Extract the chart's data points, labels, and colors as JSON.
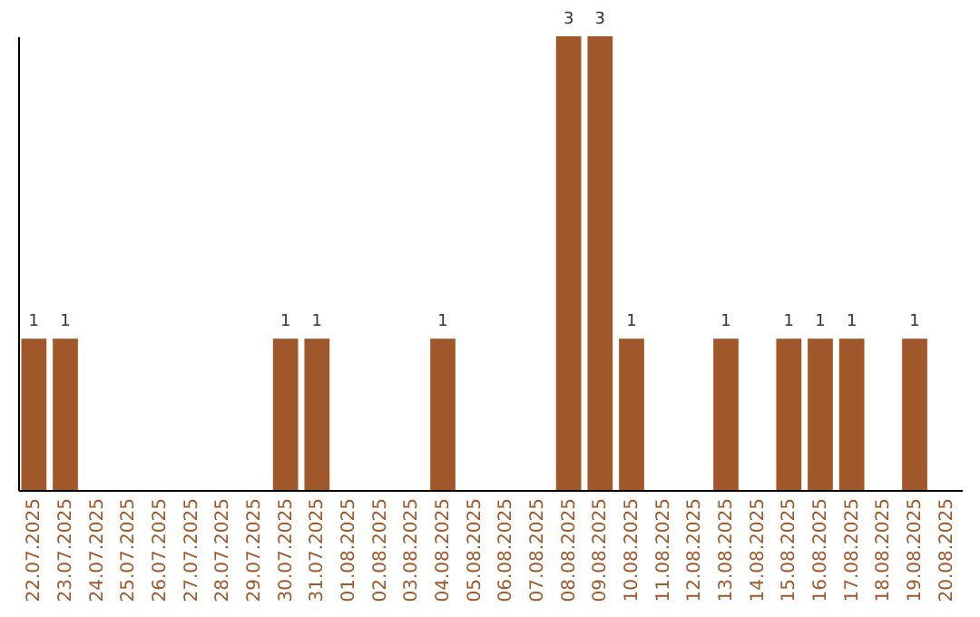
{
  "chart_data": {
    "type": "bar",
    "categories": [
      "22.07.2025",
      "23.07.2025",
      "24.07.2025",
      "25.07.2025",
      "26.07.2025",
      "27.07.2025",
      "28.07.2025",
      "29.07.2025",
      "30.07.2025",
      "31.07.2025",
      "01.08.2025",
      "02.08.2025",
      "03.08.2025",
      "04.08.2025",
      "05.08.2025",
      "06.08.2025",
      "07.08.2025",
      "08.08.2025",
      "09.08.2025",
      "10.08.2025",
      "11.08.2025",
      "12.08.2025",
      "13.08.2025",
      "14.08.2025",
      "15.08.2025",
      "16.08.2025",
      "17.08.2025",
      "18.08.2025",
      "19.08.2025",
      "20.08.2025"
    ],
    "values": [
      1,
      1,
      0,
      0,
      0,
      0,
      0,
      0,
      1,
      1,
      0,
      0,
      0,
      1,
      0,
      0,
      0,
      3,
      3,
      1,
      0,
      0,
      1,
      0,
      1,
      1,
      1,
      0,
      1,
      0
    ],
    "value_labels": [
      "1",
      "1",
      null,
      null,
      null,
      null,
      null,
      null,
      "1",
      "1",
      null,
      null,
      null,
      "1",
      null,
      null,
      null,
      "3",
      "3",
      "1",
      null,
      null,
      "1",
      null,
      "1",
      "1",
      "1",
      null,
      "1",
      null
    ],
    "color": "#a0582a",
    "grid": false,
    "tick_labels": "x"
  }
}
